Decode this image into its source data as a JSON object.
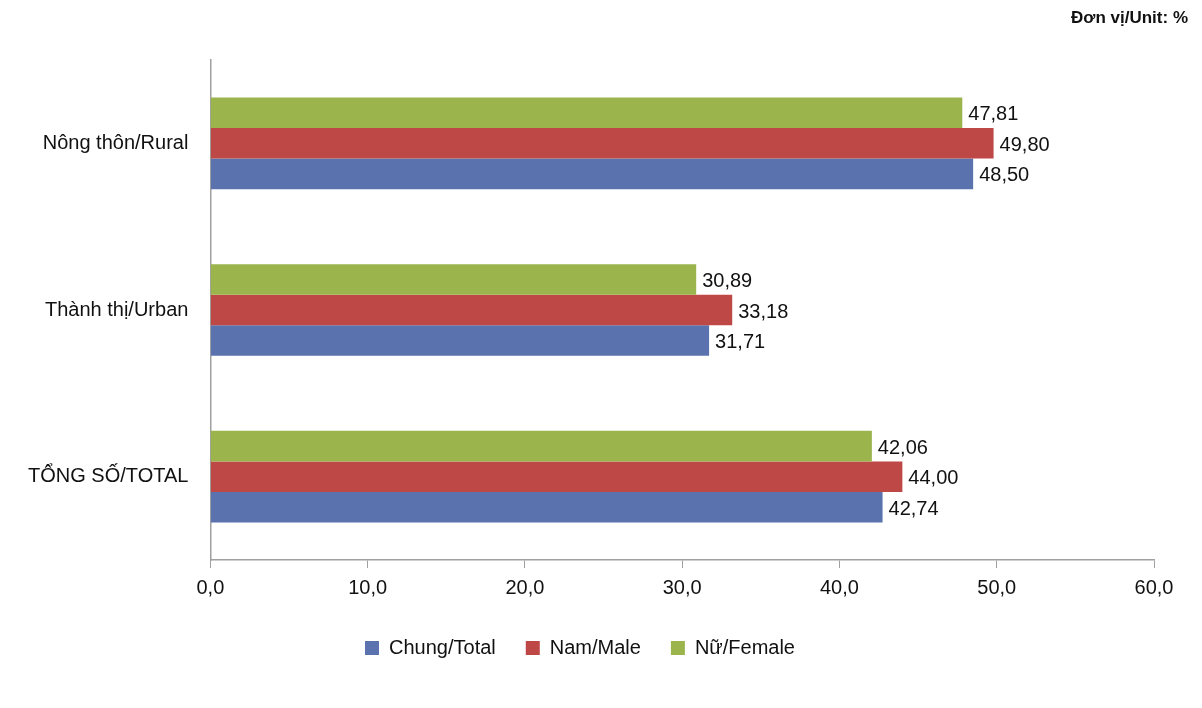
{
  "chart_data": {
    "type": "bar",
    "orientation": "horizontal",
    "categories": [
      "Nông thôn/Rural",
      "Thành thị/Urban",
      "TỔNG SỐ/TOTAL"
    ],
    "series": [
      {
        "name": "Chung/Total",
        "color": "#5a73ae",
        "values": [
          48.5,
          31.71,
          42.74
        ],
        "value_labels": [
          "48,50",
          "31,71",
          "42,74"
        ]
      },
      {
        "name": "Nam/Male",
        "color": "#bd4845",
        "values": [
          49.8,
          33.18,
          44.0
        ],
        "value_labels": [
          "49,80",
          "33,18",
          "44,00"
        ]
      },
      {
        "name": "Nữ/Female",
        "color": "#9bb44b",
        "values": [
          47.81,
          30.89,
          42.06
        ],
        "value_labels": [
          "47,81",
          "30,89",
          "42,06"
        ]
      }
    ],
    "xlim": [
      0,
      60
    ],
    "xticks": [
      {
        "value": 0,
        "label": "0,0"
      },
      {
        "value": 10,
        "label": "10,0"
      },
      {
        "value": 20,
        "label": "20,0"
      },
      {
        "value": 30,
        "label": "30,0"
      },
      {
        "value": 40,
        "label": "40,0"
      },
      {
        "value": 50,
        "label": "50,0"
      },
      {
        "value": 60,
        "label": "60,0"
      }
    ],
    "grid": false,
    "legend": "bottom",
    "annotations": [
      "Đơn vị/Unit: %"
    ]
  }
}
